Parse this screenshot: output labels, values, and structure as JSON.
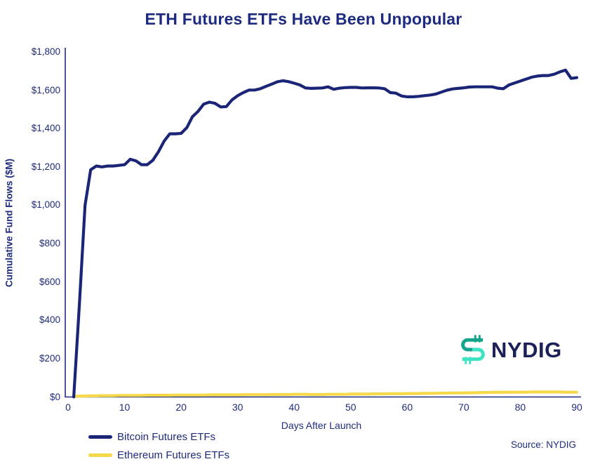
{
  "title": "ETH Futures ETFs Have Been Unpopular",
  "source_note": "Source: NYDIG",
  "logo": {
    "text": "NYDIG",
    "mark_icon": "nydig-dollar-mark",
    "mark_color_dark": "#14a38b",
    "mark_color_mint": "#3ce4c3",
    "text_color": "#1b2156"
  },
  "colors": {
    "navy_text": "#1f2c7c",
    "title_navy": "#1c2a80",
    "bitcoin_line": "#1b2577",
    "ethereum_line": "#f6d84b",
    "background": "#ffffff"
  },
  "chart_data": {
    "type": "line",
    "title": "ETH Futures ETFs Have Been Unpopular",
    "xlabel": "Days After Launch",
    "ylabel": "Cumulative Fund Flows ($M)",
    "xlim": [
      0,
      90
    ],
    "ylim": [
      0,
      1800
    ],
    "grid": false,
    "legend_position": "bottom-left",
    "x_ticks": [
      0,
      10,
      20,
      30,
      40,
      50,
      60,
      70,
      80,
      90
    ],
    "y_ticks": [
      0,
      200,
      400,
      600,
      800,
      1000,
      1200,
      1400,
      1600,
      1800
    ],
    "y_tick_labels": [
      "$0",
      "$200",
      "$400",
      "$600",
      "$800",
      "$1,000",
      "$1,200",
      "$1,400",
      "$1,600",
      "$1,800"
    ],
    "x": [
      1,
      2,
      3,
      4,
      5,
      6,
      7,
      8,
      9,
      10,
      11,
      12,
      13,
      14,
      15,
      16,
      17,
      18,
      19,
      20,
      21,
      22,
      23,
      24,
      25,
      26,
      27,
      28,
      29,
      30,
      31,
      32,
      33,
      34,
      35,
      36,
      37,
      38,
      39,
      40,
      41,
      42,
      43,
      44,
      45,
      46,
      47,
      48,
      49,
      50,
      51,
      52,
      53,
      54,
      55,
      56,
      57,
      58,
      59,
      60,
      61,
      62,
      63,
      64,
      65,
      66,
      67,
      68,
      69,
      70,
      71,
      72,
      73,
      74,
      75,
      76,
      77,
      78,
      79,
      80,
      81,
      82,
      83,
      84,
      85,
      86,
      87,
      88,
      89,
      90
    ],
    "series": [
      {
        "name": "Bitcoin Futures ETFs",
        "color": "#1b2577",
        "values": [
          0,
          480,
          1000,
          1185,
          1205,
          1200,
          1205,
          1205,
          1208,
          1212,
          1240,
          1232,
          1212,
          1212,
          1235,
          1280,
          1335,
          1373,
          1373,
          1375,
          1405,
          1462,
          1490,
          1528,
          1538,
          1532,
          1513,
          1515,
          1550,
          1572,
          1588,
          1601,
          1601,
          1608,
          1620,
          1632,
          1644,
          1650,
          1645,
          1637,
          1628,
          1612,
          1610,
          1611,
          1612,
          1618,
          1605,
          1611,
          1614,
          1615,
          1615,
          1612,
          1613,
          1613,
          1612,
          1608,
          1588,
          1585,
          1570,
          1566,
          1566,
          1568,
          1572,
          1575,
          1580,
          1590,
          1600,
          1607,
          1610,
          1613,
          1617,
          1618,
          1618,
          1618,
          1618,
          1611,
          1608,
          1628,
          1638,
          1648,
          1658,
          1668,
          1674,
          1677,
          1677,
          1684,
          1696,
          1705,
          1662,
          1666
        ]
      },
      {
        "name": "Ethereum Futures ETFs",
        "color": "#f6d84b",
        "values": [
          2,
          4,
          5,
          6,
          6,
          7,
          7,
          7,
          8,
          8,
          8,
          8,
          8,
          9,
          9,
          9,
          9,
          9,
          10,
          10,
          10,
          10,
          10,
          10,
          11,
          11,
          11,
          11,
          11,
          11,
          12,
          12,
          12,
          12,
          12,
          13,
          13,
          13,
          13,
          14,
          14,
          14,
          13,
          13,
          13,
          14,
          14,
          14,
          14,
          15,
          15,
          15,
          15,
          16,
          16,
          16,
          17,
          17,
          17,
          18,
          18,
          18,
          19,
          19,
          19,
          20,
          20,
          21,
          21,
          21,
          22,
          22,
          23,
          23,
          24,
          24,
          24,
          25,
          25,
          25,
          25,
          26,
          26,
          26,
          26,
          26,
          26,
          25,
          25,
          25
        ]
      }
    ]
  }
}
